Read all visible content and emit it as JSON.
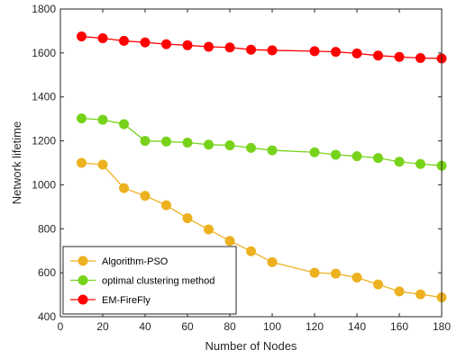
{
  "chart_data": {
    "type": "line",
    "title": "",
    "xlabel": "Number of Nodes",
    "ylabel": "Network lifetime",
    "xlim": [
      0,
      180
    ],
    "ylim": [
      400,
      1800
    ],
    "xticks": [
      0,
      20,
      40,
      60,
      80,
      100,
      120,
      140,
      160,
      180
    ],
    "yticks": [
      400,
      600,
      800,
      1000,
      1200,
      1400,
      1600,
      1800
    ],
    "grid": false,
    "legend_position": "bottom-left",
    "series": [
      {
        "name": "Algorithm-PSO",
        "color": "#EDB120",
        "x": [
          10,
          20,
          30,
          40,
          50,
          60,
          70,
          80,
          90,
          100,
          120,
          130,
          140,
          150,
          160,
          170,
          180
        ],
        "y": [
          1100,
          1092,
          985,
          950,
          907,
          848,
          797,
          745,
          698,
          648,
          600,
          596,
          578,
          547,
          515,
          502,
          488
        ]
      },
      {
        "name": "optimal clustering method",
        "color": "#77D31A",
        "x": [
          10,
          20,
          30,
          40,
          50,
          60,
          70,
          80,
          90,
          100,
          120,
          130,
          140,
          150,
          160,
          170,
          180
        ],
        "y": [
          1302,
          1296,
          1276,
          1200,
          1197,
          1192,
          1183,
          1180,
          1168,
          1157,
          1148,
          1137,
          1130,
          1122,
          1105,
          1095,
          1087
        ]
      },
      {
        "name": "EM-FireFly",
        "color": "#FF0000",
        "x": [
          10,
          20,
          30,
          40,
          50,
          60,
          70,
          80,
          90,
          100,
          120,
          130,
          140,
          150,
          160,
          170,
          180
        ],
        "y": [
          1675,
          1667,
          1655,
          1648,
          1640,
          1635,
          1628,
          1625,
          1615,
          1612,
          1608,
          1605,
          1598,
          1588,
          1582,
          1577,
          1575
        ]
      }
    ]
  }
}
